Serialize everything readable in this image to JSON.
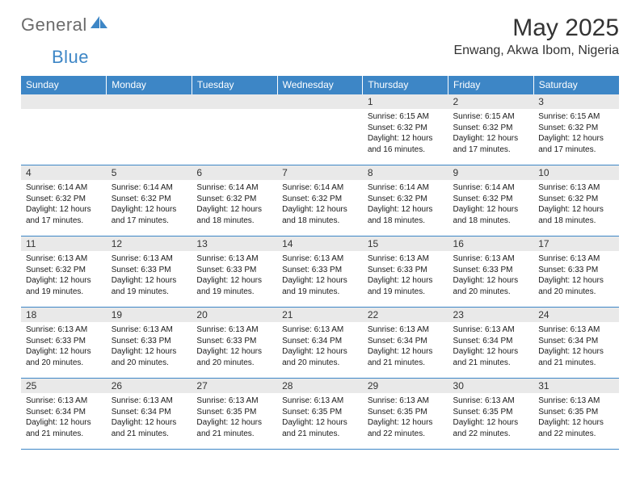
{
  "brand": {
    "name_grey": "General",
    "name_blue": "Blue"
  },
  "header": {
    "month_title": "May 2025",
    "location": "Enwang, Akwa Ibom, Nigeria"
  },
  "colors": {
    "accent": "#3d86c6",
    "header_bg": "#3d86c6",
    "daynum_bg": "#e9e9e9",
    "text": "#333333"
  },
  "weekdays": [
    "Sunday",
    "Monday",
    "Tuesday",
    "Wednesday",
    "Thursday",
    "Friday",
    "Saturday"
  ],
  "weeks": [
    [
      null,
      null,
      null,
      null,
      {
        "n": "1",
        "sr": "6:15 AM",
        "ss": "6:32 PM",
        "dl": "12 hours and 16 minutes."
      },
      {
        "n": "2",
        "sr": "6:15 AM",
        "ss": "6:32 PM",
        "dl": "12 hours and 17 minutes."
      },
      {
        "n": "3",
        "sr": "6:15 AM",
        "ss": "6:32 PM",
        "dl": "12 hours and 17 minutes."
      }
    ],
    [
      {
        "n": "4",
        "sr": "6:14 AM",
        "ss": "6:32 PM",
        "dl": "12 hours and 17 minutes."
      },
      {
        "n": "5",
        "sr": "6:14 AM",
        "ss": "6:32 PM",
        "dl": "12 hours and 17 minutes."
      },
      {
        "n": "6",
        "sr": "6:14 AM",
        "ss": "6:32 PM",
        "dl": "12 hours and 18 minutes."
      },
      {
        "n": "7",
        "sr": "6:14 AM",
        "ss": "6:32 PM",
        "dl": "12 hours and 18 minutes."
      },
      {
        "n": "8",
        "sr": "6:14 AM",
        "ss": "6:32 PM",
        "dl": "12 hours and 18 minutes."
      },
      {
        "n": "9",
        "sr": "6:14 AM",
        "ss": "6:32 PM",
        "dl": "12 hours and 18 minutes."
      },
      {
        "n": "10",
        "sr": "6:13 AM",
        "ss": "6:32 PM",
        "dl": "12 hours and 18 minutes."
      }
    ],
    [
      {
        "n": "11",
        "sr": "6:13 AM",
        "ss": "6:32 PM",
        "dl": "12 hours and 19 minutes."
      },
      {
        "n": "12",
        "sr": "6:13 AM",
        "ss": "6:33 PM",
        "dl": "12 hours and 19 minutes."
      },
      {
        "n": "13",
        "sr": "6:13 AM",
        "ss": "6:33 PM",
        "dl": "12 hours and 19 minutes."
      },
      {
        "n": "14",
        "sr": "6:13 AM",
        "ss": "6:33 PM",
        "dl": "12 hours and 19 minutes."
      },
      {
        "n": "15",
        "sr": "6:13 AM",
        "ss": "6:33 PM",
        "dl": "12 hours and 19 minutes."
      },
      {
        "n": "16",
        "sr": "6:13 AM",
        "ss": "6:33 PM",
        "dl": "12 hours and 20 minutes."
      },
      {
        "n": "17",
        "sr": "6:13 AM",
        "ss": "6:33 PM",
        "dl": "12 hours and 20 minutes."
      }
    ],
    [
      {
        "n": "18",
        "sr": "6:13 AM",
        "ss": "6:33 PM",
        "dl": "12 hours and 20 minutes."
      },
      {
        "n": "19",
        "sr": "6:13 AM",
        "ss": "6:33 PM",
        "dl": "12 hours and 20 minutes."
      },
      {
        "n": "20",
        "sr": "6:13 AM",
        "ss": "6:33 PM",
        "dl": "12 hours and 20 minutes."
      },
      {
        "n": "21",
        "sr": "6:13 AM",
        "ss": "6:34 PM",
        "dl": "12 hours and 20 minutes."
      },
      {
        "n": "22",
        "sr": "6:13 AM",
        "ss": "6:34 PM",
        "dl": "12 hours and 21 minutes."
      },
      {
        "n": "23",
        "sr": "6:13 AM",
        "ss": "6:34 PM",
        "dl": "12 hours and 21 minutes."
      },
      {
        "n": "24",
        "sr": "6:13 AM",
        "ss": "6:34 PM",
        "dl": "12 hours and 21 minutes."
      }
    ],
    [
      {
        "n": "25",
        "sr": "6:13 AM",
        "ss": "6:34 PM",
        "dl": "12 hours and 21 minutes."
      },
      {
        "n": "26",
        "sr": "6:13 AM",
        "ss": "6:34 PM",
        "dl": "12 hours and 21 minutes."
      },
      {
        "n": "27",
        "sr": "6:13 AM",
        "ss": "6:35 PM",
        "dl": "12 hours and 21 minutes."
      },
      {
        "n": "28",
        "sr": "6:13 AM",
        "ss": "6:35 PM",
        "dl": "12 hours and 21 minutes."
      },
      {
        "n": "29",
        "sr": "6:13 AM",
        "ss": "6:35 PM",
        "dl": "12 hours and 22 minutes."
      },
      {
        "n": "30",
        "sr": "6:13 AM",
        "ss": "6:35 PM",
        "dl": "12 hours and 22 minutes."
      },
      {
        "n": "31",
        "sr": "6:13 AM",
        "ss": "6:35 PM",
        "dl": "12 hours and 22 minutes."
      }
    ]
  ],
  "labels": {
    "sunrise": "Sunrise:",
    "sunset": "Sunset:",
    "daylight": "Daylight:"
  }
}
